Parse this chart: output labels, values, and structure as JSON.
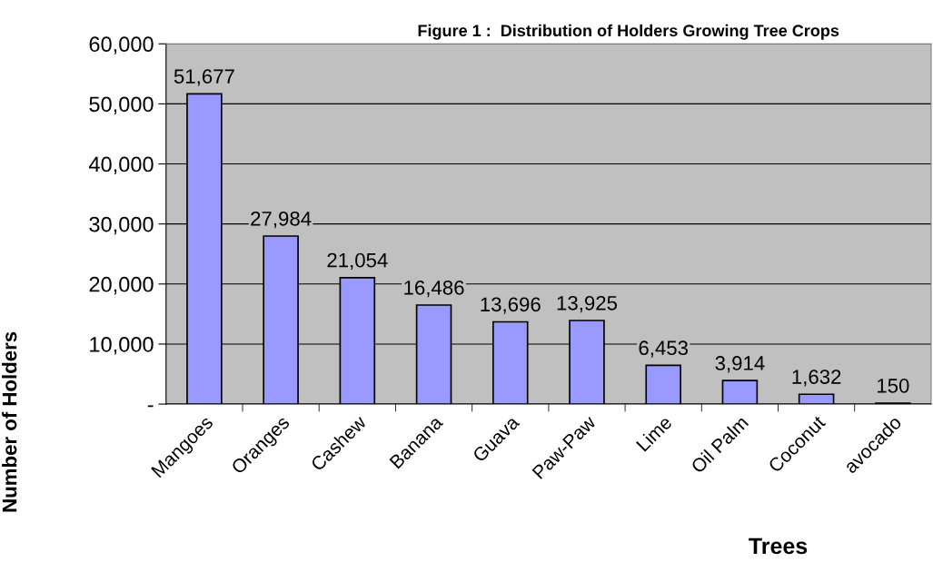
{
  "chart_data": {
    "type": "bar",
    "title": "Figure 1 :  Distribution of Holders Growing Tree Crops",
    "xlabel": "Trees",
    "ylabel": "Number of Holders",
    "categories": [
      "Mangoes",
      "Oranges",
      "Cashew",
      "Banana",
      "Guava",
      "Paw-Paw",
      "Lime",
      "Oil Palm",
      "Coconut",
      "avocado"
    ],
    "values": [
      51677,
      27984,
      21054,
      16486,
      13696,
      13925,
      6453,
      3914,
      1632,
      150
    ],
    "value_labels": [
      "51,677",
      "27,984",
      "21,054",
      "16,486",
      "13,696",
      "13,925",
      "6,453",
      "3,914",
      "1,632",
      "150"
    ],
    "color": "#9999ff",
    "ylim": [
      0,
      60000
    ],
    "yticks": [
      {
        "value": 0,
        "label": "-"
      },
      {
        "value": 10000,
        "label": "10,000"
      },
      {
        "value": 20000,
        "label": "20,000"
      },
      {
        "value": 30000,
        "label": "30,000"
      },
      {
        "value": 40000,
        "label": "40,000"
      },
      {
        "value": 50000,
        "label": "50,000"
      },
      {
        "value": 60000,
        "label": "60,000"
      }
    ],
    "grid": "y",
    "legend": false
  }
}
